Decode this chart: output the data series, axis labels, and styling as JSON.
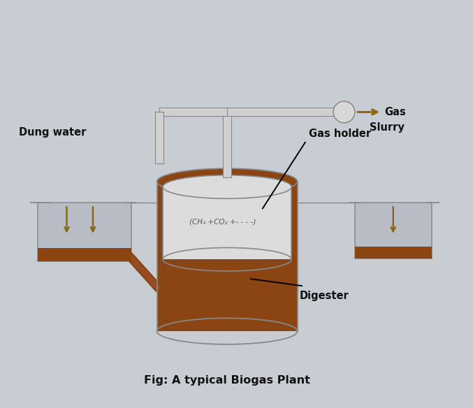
{
  "bg_color": "#c8cdd4",
  "title": "Fig: A typical Biogas Plant",
  "brown": "#8B4513",
  "brown_mid": "#9B5523",
  "gray_line": "#888888",
  "gray_dark": "#666666",
  "pipe_fill": "#d0d0d0",
  "arrow_color": "#8B6914",
  "label_color": "#111111",
  "tank_fill": "#c0c4cc",
  "labels": {
    "dung_water": "Dung water",
    "gas_holder": "Gas holder",
    "slurry": "Slurry",
    "digester": "Digester",
    "gas": "Gas",
    "formula": "(CH₄ +CO₂ +- - - -)"
  }
}
